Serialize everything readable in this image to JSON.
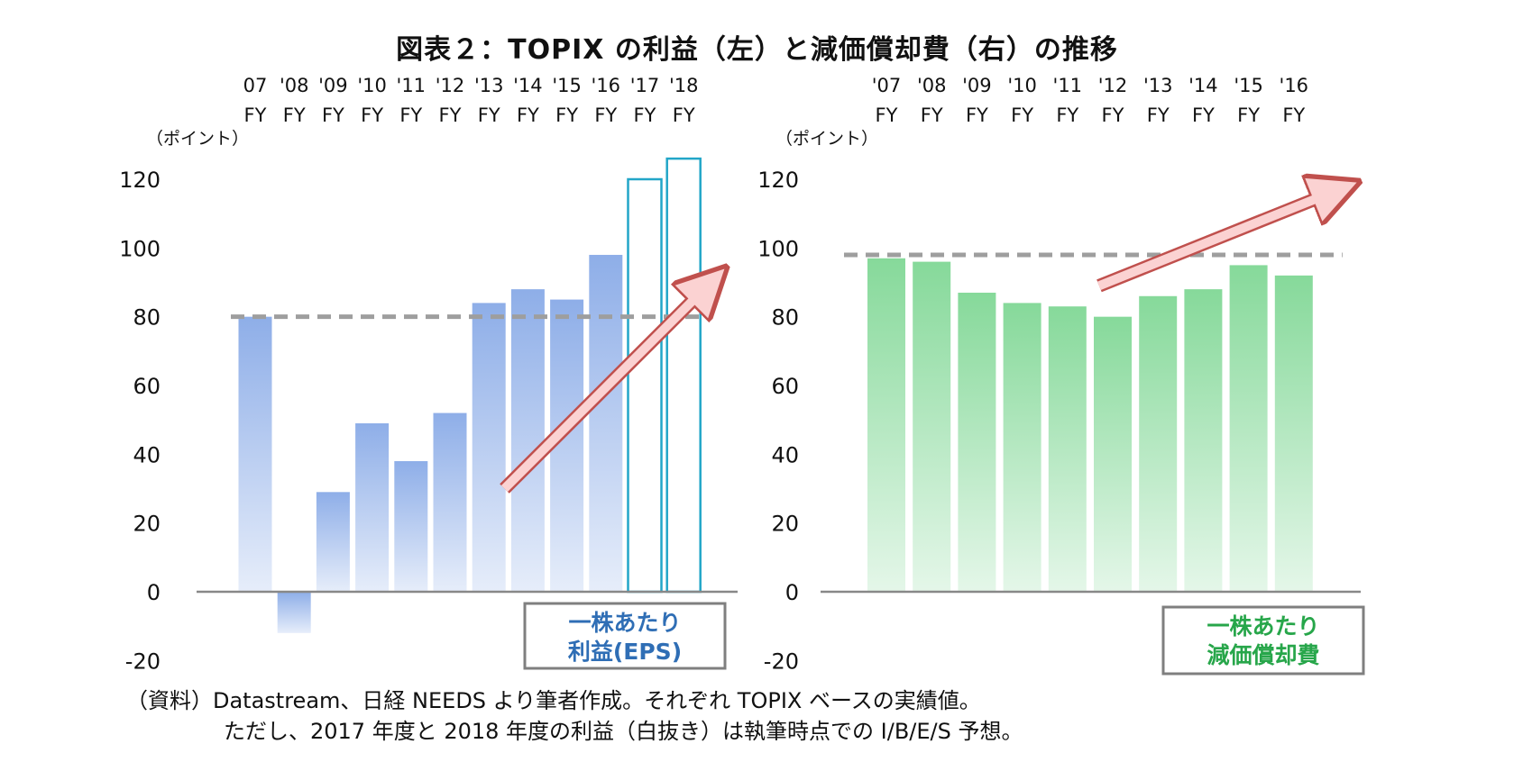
{
  "title": "図表２：TOPIX の利益（左）と減価償却費（右）の推移",
  "chart_data": [
    {
      "type": "bar",
      "unit_label": "（ポイント）",
      "categories": [
        "07",
        "'08",
        "'09",
        "'10",
        "'11",
        "'12",
        "'13",
        "'14",
        "'15",
        "'16",
        "'17",
        "'18"
      ],
      "category_suffix": "FY",
      "values": [
        80,
        -12,
        29,
        49,
        38,
        52,
        84,
        88,
        85,
        98,
        120,
        126
      ],
      "forecast": [
        false,
        false,
        false,
        false,
        false,
        false,
        false,
        false,
        false,
        false,
        true,
        true
      ],
      "ylim": [
        -20,
        130
      ],
      "yticks": [
        -20,
        0,
        20,
        40,
        60,
        80,
        100,
        120
      ],
      "reference_line": 80,
      "trend": {
        "from": [
          6.4,
          30
        ],
        "to": [
          11.7,
          90
        ]
      },
      "legend_lines": [
        "一株あたり",
        "利益(EPS)"
      ],
      "colors": {
        "bar": "#8eaee8",
        "forecast": "#22a6c8",
        "legend_text": "#2f6eb5",
        "legend_border": "#7f7f7f"
      }
    },
    {
      "type": "bar",
      "unit_label": "（ポイント）",
      "categories": [
        "'07",
        "'08",
        "'09",
        "'10",
        "'11",
        "'12",
        "'13",
        "'14",
        "'15",
        "'16"
      ],
      "category_suffix": "FY",
      "values": [
        97,
        96,
        87,
        84,
        83,
        80,
        86,
        88,
        95,
        92
      ],
      "ylim": [
        -20,
        130
      ],
      "yticks": [
        -20,
        0,
        20,
        40,
        60,
        80,
        100,
        120
      ],
      "reference_line": 98,
      "trend": {
        "from": [
          4.7,
          89
        ],
        "to": [
          10.0,
          117
        ]
      },
      "legend_lines": [
        "一株あたり",
        "減価償却費"
      ],
      "colors": {
        "bar": "#86d99a",
        "legend_text": "#27a64a",
        "legend_border": "#7f7f7f"
      }
    }
  ],
  "notes": {
    "source": "（資料）Datastream、日経 NEEDS より筆者作成。それぞれ TOPIX ベースの実績値。",
    "caveat": "ただし、2017 年度と 2018 年度の利益（白抜き）は執筆時点での I/B/E/S 予想。"
  }
}
